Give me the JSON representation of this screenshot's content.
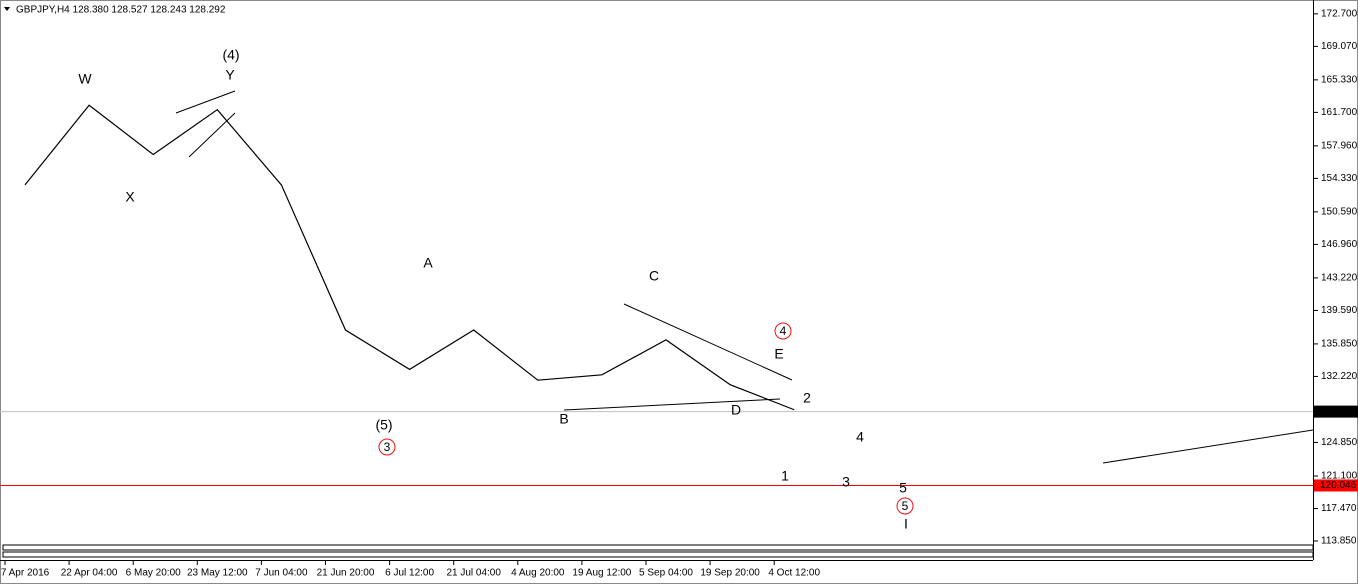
{
  "chart_data": {
    "type": "line",
    "title": "GBPJPY,H4  128.380 128.527 128.243 128.292",
    "categories": [
      "7 Apr 2016",
      "22 Apr 04:00",
      "6 May 20:00",
      "23 May 12:00",
      "7 Jun 04:00",
      "21 Jun 20:00",
      "6 Jul 12:00",
      "21 Jul 04:00",
      "4 Aug 20:00",
      "19 Aug 12:00",
      "5 Sep 04:00",
      "19 Sep 20:00",
      "4 Oct 12:00"
    ],
    "series": [
      {
        "name": "GBPJPY",
        "color": "#000000",
        "values": [
          153.6,
          162.5,
          157.0,
          162.0,
          153.6,
          137.4,
          133.0,
          137.4,
          131.8,
          132.4,
          136.3,
          131.3,
          128.5
        ]
      }
    ],
    "ylim": [
      113.4,
      173.8
    ],
    "yticks": [
      {
        "value": 172.7,
        "label": "172.700"
      },
      {
        "value": 169.07,
        "label": "169.070"
      },
      {
        "value": 165.33,
        "label": "165.330"
      },
      {
        "value": 161.7,
        "label": "161.700"
      },
      {
        "value": 157.96,
        "label": "157.960"
      },
      {
        "value": 154.33,
        "label": "154.330"
      },
      {
        "value": 150.59,
        "label": "150.590"
      },
      {
        "value": 146.96,
        "label": "146.960"
      },
      {
        "value": 143.22,
        "label": "143.220"
      },
      {
        "value": 139.59,
        "label": "139.590"
      },
      {
        "value": 135.85,
        "label": "135.850"
      },
      {
        "value": 132.22,
        "label": "132.220"
      },
      {
        "value": 124.85,
        "label": "124.850"
      },
      {
        "value": 121.1,
        "label": "121.100"
      },
      {
        "value": 117.47,
        "label": "117.470"
      },
      {
        "value": 113.85,
        "label": "113.850"
      }
    ],
    "levels": [
      {
        "value": 128.292,
        "label": "128.292",
        "color": "#c0c0c0"
      },
      {
        "value": 120.046,
        "label": "120.046",
        "color": "#ff0000"
      }
    ],
    "annotations": [
      "W",
      "X",
      "Y",
      "(4)",
      "A",
      "B",
      "C",
      "D",
      "E",
      "4",
      "(5)",
      "3",
      "1",
      "2",
      "3",
      "4",
      "5",
      "5",
      "I"
    ]
  }
}
